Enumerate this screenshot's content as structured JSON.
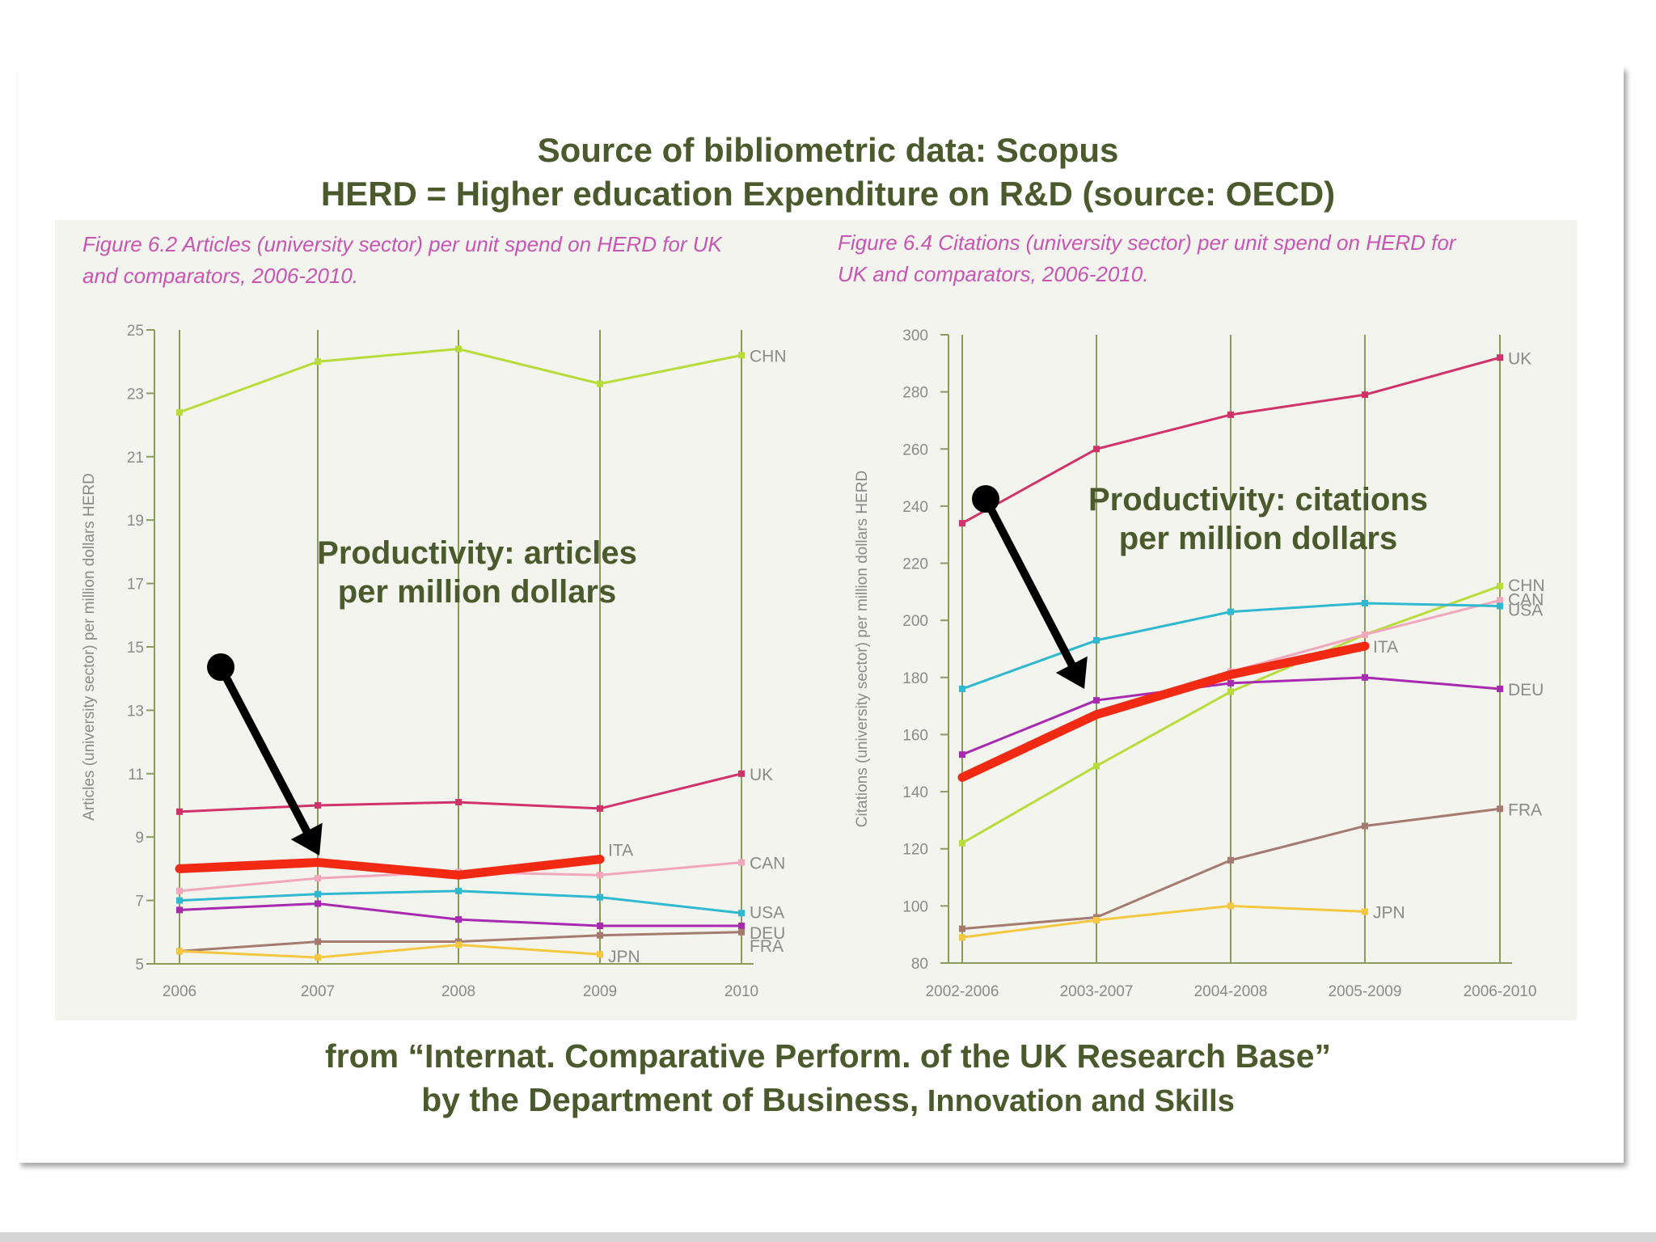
{
  "header": {
    "line1": "Source of bibliometric data: Scopus",
    "line2": "HERD = Higher education Expenditure on R&D (source: OECD)"
  },
  "footer": {
    "line1": "from “Internat. Comparative Perform. of the UK Research Base”",
    "line2_bold": "by  the Department of Business,",
    "line2_rest": " Innovation and Skills"
  },
  "annotations": {
    "left_line1": "Productivity: articles",
    "left_line2": "per million dollars",
    "right_line1": "Productivity: citations",
    "right_line2": "per million dollars"
  },
  "colors": {
    "UK": "#d0336a",
    "CHN": "#b8dc3c",
    "CAN": "#f2a7bd",
    "USA": "#2fb8d0",
    "DEU": "#a72ab0",
    "FRA": "#a57a70",
    "JPN": "#f5c842",
    "ITA": "#f22a14",
    "gridline": "#8c9a5c",
    "caption": "#c855b3",
    "annotation": "#4b5a2c"
  },
  "chart_data": [
    {
      "type": "line",
      "caption_line1": "Figure 6.2 Articles (university sector) per unit spend on HERD for UK",
      "caption_line2": "and comparators, 2006-2010.",
      "ylabel": "Articles (university sector) per million dollars HERD",
      "x": [
        "2006",
        "2007",
        "2008",
        "2009",
        "2010"
      ],
      "ylim": [
        5,
        25
      ],
      "yticks": [
        5,
        7,
        9,
        11,
        13,
        15,
        17,
        19,
        21,
        23,
        25
      ],
      "series": [
        {
          "name": "CHN",
          "values": [
            22.4,
            24.0,
            24.4,
            23.3,
            24.2
          ]
        },
        {
          "name": "UK",
          "values": [
            9.8,
            10.0,
            10.1,
            9.9,
            11.0
          ]
        },
        {
          "name": "CAN",
          "values": [
            7.3,
            7.7,
            7.9,
            7.8,
            8.2
          ]
        },
        {
          "name": "USA",
          "values": [
            7.0,
            7.2,
            7.3,
            7.1,
            6.6
          ]
        },
        {
          "name": "DEU",
          "values": [
            6.7,
            6.9,
            6.4,
            6.2,
            6.2
          ]
        },
        {
          "name": "FRA",
          "values": [
            5.4,
            5.7,
            5.7,
            5.9,
            6.0
          ]
        },
        {
          "name": "JPN",
          "values": [
            5.4,
            5.2,
            5.6,
            5.3,
            null
          ]
        },
        {
          "name": "ITA",
          "values": [
            8.0,
            8.2,
            7.8,
            8.3,
            null
          ],
          "highlight": true
        }
      ]
    },
    {
      "type": "line",
      "caption_line1": "Figure 6.4 Citations (university sector) per unit spend on HERD for",
      "caption_line2": "UK and comparators, 2006-2010.",
      "ylabel": "Citations (university sector) per million dollars HERD",
      "x": [
        "2002-2006",
        "2003-2007",
        "2004-2008",
        "2005-2009",
        "2006-2010"
      ],
      "ylim": [
        80,
        300
      ],
      "yticks": [
        80,
        100,
        120,
        140,
        160,
        180,
        200,
        220,
        240,
        260,
        280,
        300
      ],
      "series": [
        {
          "name": "UK",
          "values": [
            234,
            260,
            272,
            279,
            292
          ]
        },
        {
          "name": "CHN",
          "values": [
            122,
            149,
            175,
            195,
            212
          ]
        },
        {
          "name": "CAN",
          "values": [
            145,
            167,
            182,
            195,
            207
          ]
        },
        {
          "name": "USA",
          "values": [
            176,
            193,
            203,
            206,
            205
          ]
        },
        {
          "name": "DEU",
          "values": [
            153,
            172,
            178,
            180,
            176
          ]
        },
        {
          "name": "FRA",
          "values": [
            92,
            96,
            116,
            128,
            134
          ]
        },
        {
          "name": "JPN",
          "values": [
            89,
            95,
            100,
            98,
            null
          ]
        },
        {
          "name": "ITA",
          "values": [
            145,
            167,
            181,
            191,
            null
          ],
          "highlight": true
        }
      ]
    }
  ]
}
